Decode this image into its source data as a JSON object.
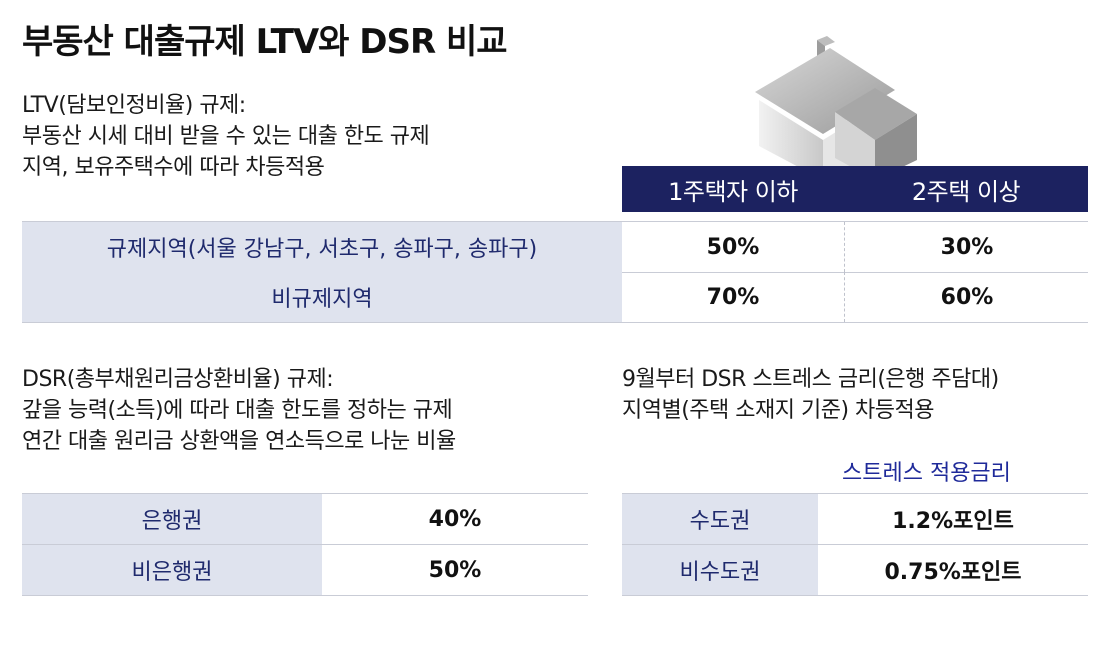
{
  "title": "부동산 대출규제 LTV와 DSR 비교",
  "ltv": {
    "heading": "LTV(담보인정비율) 규제:",
    "line1": "부동산 시세 대비 받을 수 있는 대출 한도 규제",
    "line2": "지역, 보유주택수에 따라 차등적용",
    "columns": [
      "1주택자 이하",
      "2주택 이상"
    ],
    "rows": [
      {
        "label": "규제지역(서울 강남구, 서초구, 송파구, 송파구)",
        "values": [
          "50%",
          "30%"
        ]
      },
      {
        "label": "비규제지역",
        "values": [
          "70%",
          "60%"
        ]
      }
    ]
  },
  "dsr": {
    "heading": "DSR(총부채원리금상환비율) 규제:",
    "line1": "갚을 능력(소득)에 따라 대출 한도를 정하는 규제",
    "line2": "연간 대출 원리금 상환액을 연소득으로 나눈 비율",
    "rows": [
      {
        "label": "은행권",
        "value": "40%"
      },
      {
        "label": "비은행권",
        "value": "50%"
      }
    ]
  },
  "stress": {
    "line1": "9월부터 DSR 스트레스 금리(은행 주담대)",
    "line2": "지역별(주택 소재지 기준) 차등적용",
    "subheading": "스트레스 적용금리",
    "rows": [
      {
        "label": "수도권",
        "value": "1.2%포인트"
      },
      {
        "label": "비수도권",
        "value": "0.75%포인트"
      }
    ]
  },
  "icon": "house-icon"
}
